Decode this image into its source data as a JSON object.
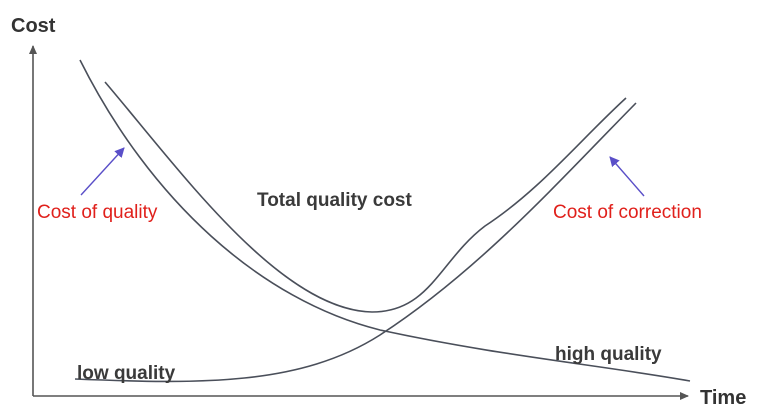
{
  "labels": {
    "y_axis": "Cost",
    "x_axis": "Time",
    "cost_of_quality": "Cost of quality",
    "cost_of_correction": "Cost of correction",
    "total_quality_cost": "Total quality cost",
    "low_quality": "low quality",
    "high_quality": "high quality"
  },
  "colors": {
    "axis": "#555555",
    "curve": "#4a4f5a",
    "annotation_red": "#e0201b",
    "arrow_purple": "#5a4fc8",
    "text_dark": "#3a3a3a"
  }
}
